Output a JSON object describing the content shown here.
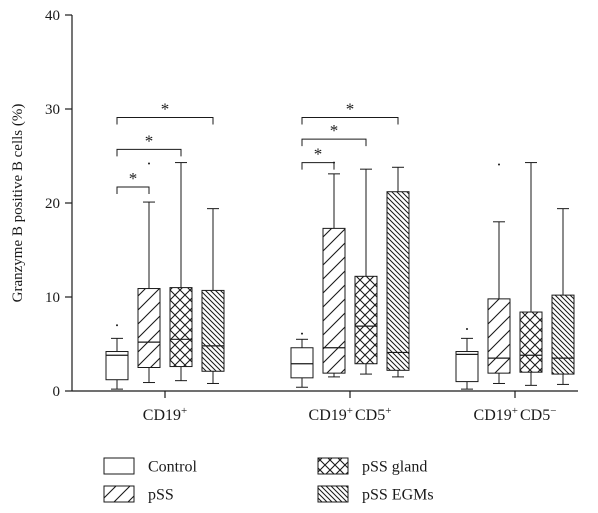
{
  "chart_data": {
    "type": "boxplot",
    "ylabel": "Granzyme B positive B cells (%)",
    "ylim": [
      0,
      40
    ],
    "yticks": [
      0,
      10,
      20,
      30,
      40
    ],
    "groups": [
      {
        "base": "CD19",
        "sup": "+"
      },
      {
        "base": "CD19",
        "sup": "+",
        "base2": "CD5",
        "sup2": "+"
      },
      {
        "base": "CD19",
        "sup": "+",
        "base2": "CD5",
        "sup2": "−"
      }
    ],
    "series": [
      {
        "name": "Control",
        "pattern": "empty"
      },
      {
        "name": "pSS",
        "pattern": "diag-sparse"
      },
      {
        "name": "pSS gland",
        "pattern": "cross"
      },
      {
        "name": "pSS EGMs",
        "pattern": "diag-dense"
      }
    ],
    "boxes": [
      [
        {
          "min": 0.2,
          "q1": 1.2,
          "median": 3.8,
          "q3": 4.2,
          "max": 5.6,
          "outliers": [
            7.0
          ]
        },
        {
          "min": 0.9,
          "q1": 2.5,
          "median": 5.2,
          "q3": 10.9,
          "max": 20.1,
          "outliers": [
            24.2
          ]
        },
        {
          "min": 1.1,
          "q1": 2.6,
          "median": 5.5,
          "q3": 11.0,
          "max": 24.3,
          "outliers": []
        },
        {
          "min": 0.8,
          "q1": 2.1,
          "median": 4.8,
          "q3": 10.7,
          "max": 19.4,
          "outliers": []
        }
      ],
      [
        {
          "min": 0.4,
          "q1": 1.4,
          "median": 2.9,
          "q3": 4.6,
          "max": 5.5,
          "outliers": [
            6.1
          ]
        },
        {
          "min": 1.5,
          "q1": 1.9,
          "median": 4.6,
          "q3": 17.3,
          "max": 23.1,
          "outliers": [
            24.3
          ]
        },
        {
          "min": 1.8,
          "q1": 2.9,
          "median": 6.9,
          "q3": 12.2,
          "max": 23.6,
          "outliers": []
        },
        {
          "min": 1.5,
          "q1": 2.2,
          "median": 4.1,
          "q3": 21.2,
          "max": 23.8,
          "outliers": []
        }
      ],
      [
        {
          "min": 0.2,
          "q1": 1.0,
          "median": 3.9,
          "q3": 4.2,
          "max": 5.6,
          "outliers": [
            6.6
          ]
        },
        {
          "min": 0.8,
          "q1": 1.9,
          "median": 3.5,
          "q3": 9.8,
          "max": 18.0,
          "outliers": [
            24.1
          ]
        },
        {
          "min": 0.6,
          "q1": 2.0,
          "median": 3.8,
          "q3": 8.4,
          "max": 24.3,
          "outliers": []
        },
        {
          "min": 0.7,
          "q1": 1.8,
          "median": 3.5,
          "q3": 10.2,
          "max": 19.4,
          "outliers": []
        }
      ]
    ],
    "significance": [
      {
        "group": 0,
        "from": 0,
        "to": 1,
        "y": 21.7,
        "label": "*"
      },
      {
        "group": 0,
        "from": 0,
        "to": 2,
        "y": 25.7,
        "label": "*"
      },
      {
        "group": 0,
        "from": 0,
        "to": 3,
        "y": 29.1,
        "label": "*"
      },
      {
        "group": 1,
        "from": 0,
        "to": 1,
        "y": 24.3,
        "label": "*"
      },
      {
        "group": 1,
        "from": 0,
        "to": 2,
        "y": 26.8,
        "label": "*"
      },
      {
        "group": 1,
        "from": 0,
        "to": 3,
        "y": 29.1,
        "label": "*"
      }
    ],
    "legend_position": "bottom",
    "grid": false
  }
}
